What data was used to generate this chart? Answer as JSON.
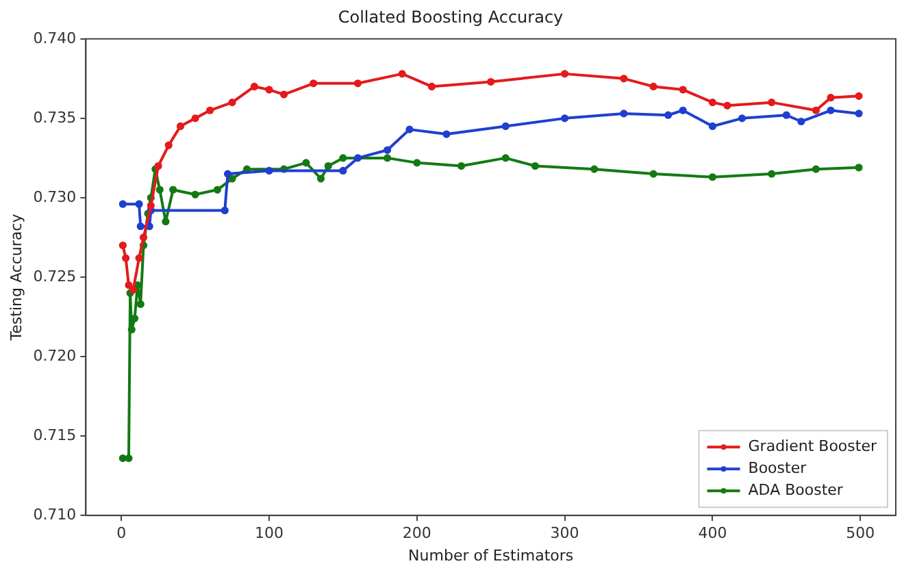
{
  "chart_data": {
    "type": "line",
    "title": "Collated Boosting Accuracy",
    "xlabel": "Number of Estimators",
    "ylabel": "Testing Accuracy",
    "xlim": [
      -24,
      524
    ],
    "xticks": [
      0,
      100,
      200,
      300,
      400,
      500
    ],
    "ylim": [
      0.71,
      0.74
    ],
    "yticks": [
      {
        "value": 0.71,
        "label": "0.710"
      },
      0.715,
      {
        "value": 0.72,
        "label": "0.720"
      },
      0.725,
      {
        "value": 0.73,
        "label": "0.730"
      },
      0.735,
      {
        "value": 0.74,
        "label": "0.740"
      }
    ],
    "grid": false,
    "legend": "bottom right",
    "marker": "circle",
    "line_style": "solid",
    "series": [
      {
        "name": "Gradient Booster",
        "color": "#e41a1c",
        "x": [
          1,
          3,
          5,
          8,
          12,
          15,
          20,
          25,
          32,
          40,
          50,
          60,
          75,
          90,
          100,
          110,
          130,
          160,
          190,
          210,
          250,
          300,
          340,
          360,
          380,
          400,
          410,
          440,
          470,
          480,
          499
        ],
        "values": [
          0.727,
          0.7262,
          0.7245,
          0.7242,
          0.7262,
          0.7275,
          0.7295,
          0.732,
          0.7333,
          0.7345,
          0.735,
          0.7355,
          0.736,
          0.737,
          0.7368,
          0.7365,
          0.7372,
          0.7372,
          0.7378,
          0.737,
          0.7373,
          0.7378,
          0.7375,
          0.737,
          0.7368,
          0.736,
          0.7358,
          0.736,
          0.7355,
          0.7363,
          0.7364
        ]
      },
      {
        "name": "Booster",
        "color": "#1f3fd0",
        "x": [
          1,
          12,
          13,
          19,
          20,
          70,
          72,
          100,
          150,
          160,
          180,
          195,
          220,
          260,
          300,
          340,
          370,
          380,
          400,
          420,
          450,
          460,
          480,
          499
        ],
        "values": [
          0.7296,
          0.7296,
          0.7282,
          0.7282,
          0.7292,
          0.7292,
          0.7315,
          0.7317,
          0.7317,
          0.7325,
          0.733,
          0.7343,
          0.734,
          0.7345,
          0.735,
          0.7353,
          0.7352,
          0.7355,
          0.7345,
          0.735,
          0.7352,
          0.7348,
          0.7355,
          0.7353
        ]
      },
      {
        "name": "ADA Booster",
        "color": "#137a13",
        "x": [
          1,
          5,
          6,
          7,
          9,
          11,
          13,
          15,
          18,
          20,
          23,
          26,
          30,
          35,
          50,
          65,
          75,
          85,
          110,
          125,
          135,
          140,
          150,
          180,
          200,
          230,
          260,
          280,
          320,
          360,
          400,
          440,
          470,
          499
        ],
        "values": [
          0.7136,
          0.7136,
          0.724,
          0.7217,
          0.7224,
          0.7245,
          0.7233,
          0.727,
          0.729,
          0.73,
          0.7318,
          0.7305,
          0.7285,
          0.7305,
          0.7302,
          0.7305,
          0.7312,
          0.7318,
          0.7318,
          0.7322,
          0.7312,
          0.732,
          0.7325,
          0.7325,
          0.7322,
          0.732,
          0.7325,
          0.732,
          0.7318,
          0.7315,
          0.7313,
          0.7315,
          0.7318,
          0.7319
        ]
      }
    ]
  }
}
